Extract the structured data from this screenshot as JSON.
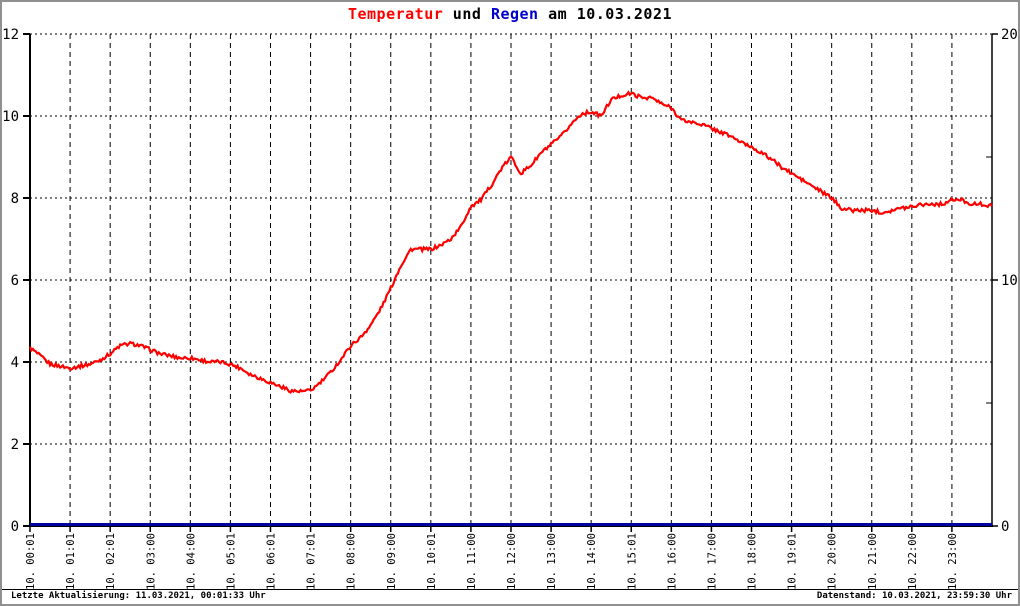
{
  "title": {
    "part_temperatur": "Temperatur",
    "part_und": " und ",
    "part_regen": "Regen",
    "part_date": " am 10.03.2021",
    "color_temperatur": "#ff0000",
    "color_regen": "#0000cc",
    "color_default": "#000000"
  },
  "footer": {
    "left": "Letzte Aktualisierung: 11.03.2021, 00:01:33 Uhr",
    "right": "Datenstand: 10.03.2021, 23:59:30 Uhr"
  },
  "chart_data": {
    "type": "line",
    "title": "Temperatur und Regen am 10.03.2021",
    "grid": {
      "vertical_style": "dashed",
      "horizontal_style": "dotted",
      "color": "#000000"
    },
    "x_axis": {
      "range_hours": [
        0,
        24
      ],
      "labels": [
        "10. 00:01",
        "10. 01:01",
        "10. 02:01",
        "10. 03:00",
        "10. 04:00",
        "10. 05:01",
        "10. 06:01",
        "10. 07:01",
        "10. 08:00",
        "10. 09:00",
        "10. 10:01",
        "10. 11:00",
        "10. 12:00",
        "10. 13:00",
        "10. 14:00",
        "10. 15:01",
        "10. 16:00",
        "10. 17:00",
        "10. 18:00",
        "10. 19:01",
        "10. 20:00",
        "10. 21:00",
        "10. 22:00",
        "10. 23:00"
      ]
    },
    "y_left": {
      "min": 0,
      "max": 12,
      "ticks": [
        0,
        2,
        4,
        6,
        8,
        10,
        12
      ],
      "series": "Temperatur"
    },
    "y_right": {
      "min": 0,
      "max": 20,
      "ticks": [
        0,
        10,
        20
      ],
      "minor_ticks": [
        5,
        15
      ],
      "series": "Regen"
    },
    "series": [
      {
        "name": "Temperatur",
        "axis": "left",
        "color": "#ff0000",
        "x_hours_start": 0,
        "x_hours_step": 0.25,
        "values": [
          4.35,
          4.15,
          3.95,
          3.9,
          3.85,
          3.9,
          3.95,
          4.05,
          4.2,
          4.4,
          4.45,
          4.4,
          4.3,
          4.2,
          4.15,
          4.1,
          4.1,
          4.05,
          4.0,
          4.0,
          3.95,
          3.85,
          3.7,
          3.6,
          3.5,
          3.4,
          3.3,
          3.28,
          3.3,
          3.5,
          3.75,
          4.05,
          4.4,
          4.6,
          4.9,
          5.3,
          5.8,
          6.35,
          6.75,
          6.75,
          6.75,
          6.85,
          7.0,
          7.3,
          7.8,
          7.95,
          8.3,
          8.7,
          9.0,
          8.6,
          8.8,
          9.1,
          9.3,
          9.5,
          9.8,
          10.05,
          10.1,
          10.0,
          10.4,
          10.5,
          10.55,
          10.45,
          10.45,
          10.3,
          10.2,
          9.9,
          9.85,
          9.8,
          9.7,
          9.6,
          9.5,
          9.35,
          9.25,
          9.1,
          8.95,
          8.75,
          8.6,
          8.45,
          8.3,
          8.15,
          8.0,
          7.75,
          7.7,
          7.7,
          7.7,
          7.65,
          7.7,
          7.75,
          7.8,
          7.85,
          7.85,
          7.85,
          7.95,
          7.95,
          7.85,
          7.85,
          7.8
        ]
      },
      {
        "name": "Regen",
        "axis": "right",
        "color": "#0000a0",
        "x_hours": [
          0,
          24
        ],
        "values": [
          0,
          0
        ]
      }
    ]
  }
}
